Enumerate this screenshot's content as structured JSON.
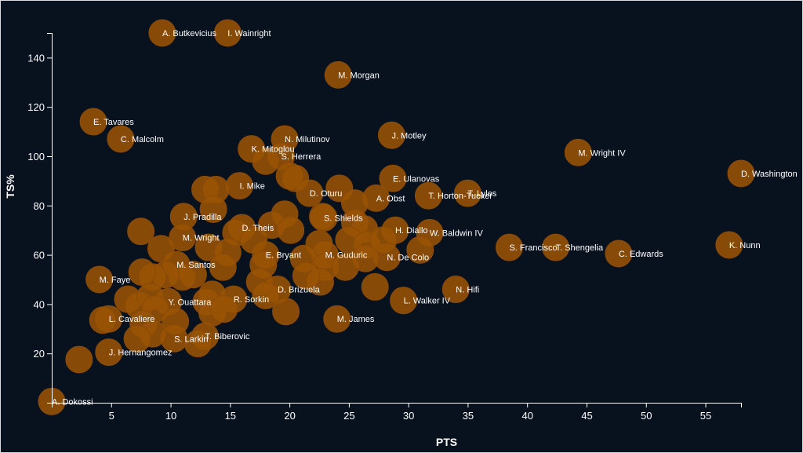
{
  "chart_data": {
    "type": "scatter",
    "title": "",
    "xlabel": "PTS",
    "ylabel": "TS%",
    "xlim": [
      0,
      58
    ],
    "ylim": [
      0,
      150
    ],
    "x_ticks": [
      5,
      10,
      15,
      20,
      25,
      30,
      35,
      40,
      45,
      50,
      55
    ],
    "y_ticks": [
      20,
      40,
      60,
      80,
      100,
      120,
      140
    ],
    "colors": {
      "background": "#08111e",
      "point": "#9a5305",
      "axis": "#ffffff"
    },
    "points": [
      {
        "name": "A. Butkevicius",
        "x": 9.3,
        "y": 150,
        "label": true
      },
      {
        "name": "I. Wainright",
        "x": 14.8,
        "y": 150,
        "label": true
      },
      {
        "name": "M. Morgan",
        "x": 24.1,
        "y": 133,
        "label": true
      },
      {
        "name": "E. Tavares",
        "x": 3.5,
        "y": 114,
        "label": true
      },
      {
        "name": "C. Malcolm",
        "x": 5.8,
        "y": 107,
        "label": true
      },
      {
        "name": "J. Motley",
        "x": 28.6,
        "y": 108.5,
        "label": true
      },
      {
        "name": "N. Milutinov",
        "x": 19.6,
        "y": 107,
        "label": true
      },
      {
        "name": "K. Mitoglou",
        "x": 16.8,
        "y": 103,
        "label": true
      },
      {
        "name": "S. Herrera",
        "x": 19.3,
        "y": 100,
        "label": true
      },
      {
        "name": "M. Wright IV",
        "x": 44.3,
        "y": 101.5,
        "label": true
      },
      {
        "name": "D. Washington",
        "x": 58.0,
        "y": 93,
        "label": true
      },
      {
        "name": "E. Ulanovas",
        "x": 28.7,
        "y": 91,
        "label": true
      },
      {
        "name": "I. Mike",
        "x": 15.8,
        "y": 88,
        "label": true
      },
      {
        "name": "D. Oturu",
        "x": 21.7,
        "y": 85,
        "label": true
      },
      {
        "name": "A. Obst",
        "x": 27.3,
        "y": 83,
        "label": true
      },
      {
        "name": "T. Horton-Tucker",
        "x": 31.7,
        "y": 84,
        "label": true
      },
      {
        "name": "T. Lyles",
        "x": 35.0,
        "y": 85,
        "label": true
      },
      {
        "name": "J. Pradilla",
        "x": 11.1,
        "y": 75.5,
        "label": true
      },
      {
        "name": "S. Shields",
        "x": 22.9,
        "y": 75,
        "label": true
      },
      {
        "name": "D. Theis",
        "x": 16.0,
        "y": 71,
        "label": true
      },
      {
        "name": "H. Diallo",
        "x": 28.9,
        "y": 70,
        "label": true
      },
      {
        "name": "W. Baldwin IV",
        "x": 31.8,
        "y": 69,
        "label": true
      },
      {
        "name": "M. Wright",
        "x": 11.0,
        "y": 67,
        "label": true
      },
      {
        "name": "S. Francisco",
        "x": 38.5,
        "y": 63,
        "label": true
      },
      {
        "name": "T. Shengelia",
        "x": 42.4,
        "y": 63,
        "label": true
      },
      {
        "name": "K. Nunn",
        "x": 57.0,
        "y": 64,
        "label": true
      },
      {
        "name": "C. Edwards",
        "x": 47.7,
        "y": 60.5,
        "label": true
      },
      {
        "name": "E. Bryant",
        "x": 18.0,
        "y": 60,
        "label": true
      },
      {
        "name": "M. Guduric",
        "x": 23.0,
        "y": 60,
        "label": true
      },
      {
        "name": "N. De Colo",
        "x": 28.2,
        "y": 59,
        "label": true
      },
      {
        "name": "M. Santos",
        "x": 10.5,
        "y": 56,
        "label": true
      },
      {
        "name": "M. Faye",
        "x": 4.0,
        "y": 50,
        "label": true
      },
      {
        "name": "N. Hifi",
        "x": 34.0,
        "y": 46,
        "label": true
      },
      {
        "name": "D. Brizuela",
        "x": 19.0,
        "y": 46,
        "label": true
      },
      {
        "name": "R. Sorkin",
        "x": 15.3,
        "y": 42,
        "label": true
      },
      {
        "name": "L. Walker IV",
        "x": 29.6,
        "y": 41.5,
        "label": true
      },
      {
        "name": "Y. Ouattara",
        "x": 9.8,
        "y": 41,
        "label": true
      },
      {
        "name": "L. Cavaliere",
        "x": 4.8,
        "y": 34,
        "label": true
      },
      {
        "name": "M. James",
        "x": 24.0,
        "y": 34,
        "label": true
      },
      {
        "name": "T. Biberovic",
        "x": 12.9,
        "y": 27,
        "label": true
      },
      {
        "name": "S. Larkin",
        "x": 10.3,
        "y": 26,
        "label": true
      },
      {
        "name": "J. Hernangomez",
        "x": 4.8,
        "y": 20.5,
        "label": true
      },
      {
        "name": "A. Dokossi",
        "x": 0.0,
        "y": 0.5,
        "label": true
      },
      {
        "name": "",
        "x": 2.3,
        "y": 17.5,
        "label": false
      },
      {
        "name": "",
        "x": 7.5,
        "y": 69.5,
        "label": false
      },
      {
        "name": "",
        "x": 9.2,
        "y": 62.5,
        "label": false
      },
      {
        "name": "",
        "x": 13.2,
        "y": 63,
        "label": false
      },
      {
        "name": "",
        "x": 14.8,
        "y": 61,
        "label": false
      },
      {
        "name": "",
        "x": 12.9,
        "y": 86.5,
        "label": false
      },
      {
        "name": "",
        "x": 13.8,
        "y": 86.5,
        "label": false
      },
      {
        "name": "",
        "x": 13.6,
        "y": 78.5,
        "label": false
      },
      {
        "name": "",
        "x": 15.5,
        "y": 69,
        "label": false
      },
      {
        "name": "",
        "x": 17.0,
        "y": 66,
        "label": false
      },
      {
        "name": "",
        "x": 18.5,
        "y": 72,
        "label": false
      },
      {
        "name": "",
        "x": 19.6,
        "y": 76.5,
        "label": false
      },
      {
        "name": "",
        "x": 20.1,
        "y": 70,
        "label": false
      },
      {
        "name": "",
        "x": 20.0,
        "y": 92,
        "label": false
      },
      {
        "name": "",
        "x": 20.5,
        "y": 91,
        "label": false
      },
      {
        "name": "",
        "x": 18.0,
        "y": 98,
        "label": false
      },
      {
        "name": "",
        "x": 24.2,
        "y": 87,
        "label": false
      },
      {
        "name": "",
        "x": 25.5,
        "y": 81,
        "label": false
      },
      {
        "name": "",
        "x": 22.8,
        "y": 75.5,
        "label": false
      },
      {
        "name": "",
        "x": 25.5,
        "y": 73,
        "label": false
      },
      {
        "name": "",
        "x": 26.3,
        "y": 70.5,
        "label": false
      },
      {
        "name": "",
        "x": 25.0,
        "y": 66,
        "label": false
      },
      {
        "name": "",
        "x": 26.5,
        "y": 64,
        "label": false
      },
      {
        "name": "",
        "x": 27.9,
        "y": 66,
        "label": false
      },
      {
        "name": "",
        "x": 31.0,
        "y": 62,
        "label": false
      },
      {
        "name": "",
        "x": 22.5,
        "y": 64.5,
        "label": false
      },
      {
        "name": "",
        "x": 21.2,
        "y": 58.5,
        "label": false
      },
      {
        "name": "",
        "x": 23.0,
        "y": 55,
        "label": false
      },
      {
        "name": "",
        "x": 24.7,
        "y": 55,
        "label": false
      },
      {
        "name": "",
        "x": 26.4,
        "y": 58.5,
        "label": false
      },
      {
        "name": "",
        "x": 27.2,
        "y": 47,
        "label": false
      },
      {
        "name": "",
        "x": 22.6,
        "y": 49,
        "label": false
      },
      {
        "name": "",
        "x": 21.4,
        "y": 51.5,
        "label": false
      },
      {
        "name": "",
        "x": 17.8,
        "y": 56,
        "label": false
      },
      {
        "name": "",
        "x": 17.5,
        "y": 49,
        "label": false
      },
      {
        "name": "",
        "x": 18.0,
        "y": 43.5,
        "label": false
      },
      {
        "name": "",
        "x": 19.7,
        "y": 37,
        "label": false
      },
      {
        "name": "",
        "x": 14.4,
        "y": 55,
        "label": false
      },
      {
        "name": "",
        "x": 13.5,
        "y": 44,
        "label": false
      },
      {
        "name": "",
        "x": 13.0,
        "y": 41,
        "label": false
      },
      {
        "name": "",
        "x": 13.5,
        "y": 36.5,
        "label": false
      },
      {
        "name": "",
        "x": 14.5,
        "y": 38,
        "label": false
      },
      {
        "name": "",
        "x": 11.9,
        "y": 52,
        "label": false
      },
      {
        "name": "",
        "x": 11.0,
        "y": 51,
        "label": false
      },
      {
        "name": "",
        "x": 9.6,
        "y": 52,
        "label": false
      },
      {
        "name": "",
        "x": 8.5,
        "y": 51,
        "label": false
      },
      {
        "name": "",
        "x": 7.6,
        "y": 53,
        "label": false
      },
      {
        "name": "",
        "x": 6.4,
        "y": 42,
        "label": false
      },
      {
        "name": "",
        "x": 7.3,
        "y": 39.5,
        "label": false
      },
      {
        "name": "",
        "x": 8.3,
        "y": 43,
        "label": false
      },
      {
        "name": "",
        "x": 8.7,
        "y": 38,
        "label": false
      },
      {
        "name": "",
        "x": 7.7,
        "y": 32,
        "label": false
      },
      {
        "name": "",
        "x": 8.5,
        "y": 28,
        "label": false
      },
      {
        "name": "",
        "x": 10.4,
        "y": 33,
        "label": false
      },
      {
        "name": "",
        "x": 7.2,
        "y": 26,
        "label": false
      },
      {
        "name": "",
        "x": 12.3,
        "y": 24,
        "label": false
      },
      {
        "name": "",
        "x": 4.3,
        "y": 33.5,
        "label": false
      }
    ]
  }
}
